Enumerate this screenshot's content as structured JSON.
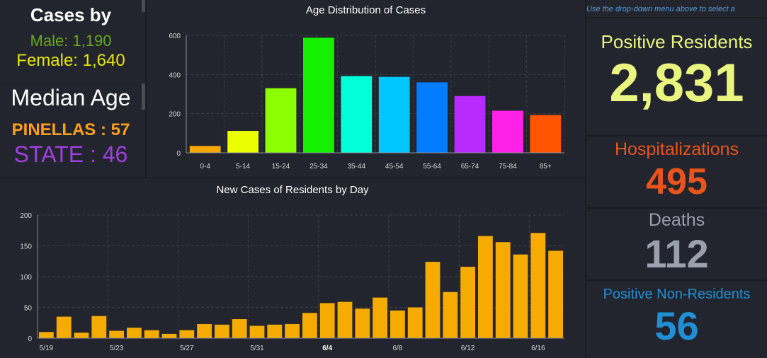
{
  "cases_by": {
    "title": "Cases by",
    "male": "Male: 1,190",
    "female": "Female: 1,640"
  },
  "median_age": {
    "title": "Median Age",
    "pinellas": "PINELLAS : 57",
    "state": "STATE : 46"
  },
  "hint": "Use the drop-down menu above to select a",
  "stats": [
    {
      "label": "Positive Residents",
      "value": "2,831",
      "color": "#e9f57e"
    },
    {
      "label": "Hospitalizations",
      "value": "495",
      "color": "#e8541c"
    },
    {
      "label": "Deaths",
      "value": "112",
      "color": "#9ba0ae"
    },
    {
      "label": "Positive Non-Residents",
      "value": "56",
      "color": "#1f8fd6"
    }
  ],
  "chart_data": [
    {
      "type": "bar",
      "title": "Age Distribution of Cases",
      "categories": [
        "0-4",
        "5-14",
        "15-24",
        "25-34",
        "35-44",
        "45-54",
        "55-64",
        "65-74",
        "75-84",
        "85+"
      ],
      "values": [
        35,
        112,
        330,
        588,
        392,
        388,
        360,
        290,
        215,
        193
      ],
      "colors": [
        "#f7a800",
        "#ebff00",
        "#8cff00",
        "#14f000",
        "#00ffd8",
        "#00c8ff",
        "#007cff",
        "#b92aff",
        "#ff22e6",
        "#ff5500"
      ],
      "ylim": [
        0,
        600
      ],
      "yticks": [
        0,
        200,
        400,
        600
      ],
      "grid": true
    },
    {
      "type": "bar",
      "title": "New Cases of Residents by Day",
      "x": [
        "5/19",
        "5/20",
        "5/21",
        "5/22",
        "5/23",
        "5/24",
        "5/25",
        "5/26",
        "5/27",
        "5/28",
        "5/29",
        "5/30",
        "5/31",
        "6/1",
        "6/2",
        "6/3",
        "6/4",
        "6/5",
        "6/6",
        "6/7",
        "6/8",
        "6/9",
        "6/10",
        "6/11",
        "6/12",
        "6/13",
        "6/14",
        "6/15",
        "6/16",
        "6/17"
      ],
      "values": [
        10,
        35,
        9,
        36,
        12,
        17,
        13,
        7,
        13,
        23,
        22,
        31,
        20,
        22,
        23,
        41,
        57,
        59,
        48,
        66,
        45,
        50,
        124,
        75,
        116,
        166,
        156,
        136,
        171,
        142
      ],
      "color": "#f5ab00",
      "tick_labels": [
        "5/19",
        "5/23",
        "5/27",
        "5/31",
        "6/4",
        "6/8",
        "6/12",
        "6/16"
      ],
      "bold_tick": "6/4",
      "ylim": [
        0,
        200
      ],
      "yticks": [
        0,
        50,
        100,
        150,
        200
      ],
      "grid": true
    }
  ]
}
